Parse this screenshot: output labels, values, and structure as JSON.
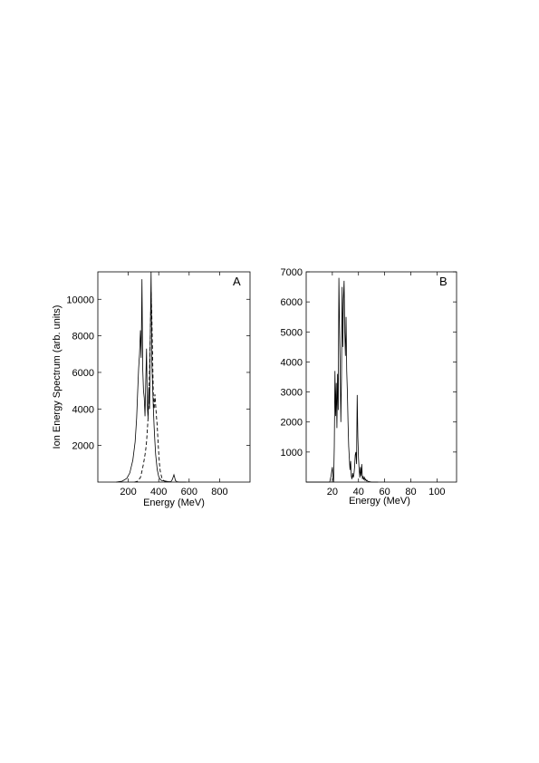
{
  "chart_data": [
    {
      "type": "line",
      "panel_label": "A",
      "xlabel": "Energy (MeV)",
      "ylabel": "Ion Energy Spectrum (arb. units)",
      "xlim": [
        0,
        1000
      ],
      "ylim": [
        0,
        11500
      ],
      "xticks": [
        200,
        400,
        600,
        800
      ],
      "yticks": [
        2000,
        4000,
        6000,
        8000,
        10000
      ],
      "grid": false,
      "series": [
        {
          "style": "solid",
          "x": [
            120,
            160,
            190,
            210,
            230,
            245,
            255,
            262,
            268,
            274,
            280,
            285,
            290,
            295,
            300,
            305,
            310,
            315,
            320,
            325,
            330,
            335,
            340,
            345,
            350,
            355,
            360,
            365,
            370,
            375,
            380,
            390,
            400,
            410,
            420,
            440,
            460,
            480,
            490,
            500,
            505,
            510,
            520,
            540,
            580
          ],
          "y": [
            0,
            50,
            200,
            500,
            1200,
            2200,
            3500,
            5000,
            6200,
            7000,
            8300,
            6800,
            11100,
            6200,
            5000,
            4600,
            3600,
            5500,
            7300,
            4200,
            3500,
            5200,
            4000,
            8300,
            11500,
            6500,
            5200,
            4000,
            3000,
            2200,
            1500,
            700,
            300,
            150,
            80,
            60,
            30,
            20,
            150,
            400,
            250,
            80,
            20,
            0,
            0
          ]
        },
        {
          "style": "dashed",
          "x": [
            240,
            260,
            280,
            290,
            300,
            310,
            315,
            320,
            325,
            330,
            335,
            340,
            345,
            350,
            355,
            360,
            365,
            370,
            375,
            380,
            385,
            390,
            395,
            400,
            405,
            410,
            420,
            430,
            440,
            460
          ],
          "y": [
            0,
            40,
            250,
            600,
            1000,
            1500,
            1800,
            2200,
            2800,
            3500,
            4600,
            6200,
            8200,
            10400,
            9000,
            6800,
            4600,
            4000,
            4800,
            4200,
            3600,
            3100,
            2300,
            1600,
            1000,
            600,
            250,
            100,
            40,
            0
          ]
        }
      ]
    },
    {
      "type": "line",
      "panel_label": "B",
      "xlabel": "Energy (MeV)",
      "xlim": [
        0,
        115
      ],
      "ylim": [
        0,
        7000
      ],
      "xticks": [
        20,
        40,
        60,
        80,
        100
      ],
      "yticks": [
        1000,
        2000,
        3000,
        4000,
        5000,
        6000,
        7000
      ],
      "grid": false,
      "series": [
        {
          "style": "solid",
          "x": [
            0,
            18,
            19,
            20,
            20.5,
            21,
            21.5,
            22,
            22.5,
            23,
            23.5,
            24,
            24.5,
            25,
            25.5,
            26,
            26.5,
            27,
            27.5,
            28,
            28.5,
            29,
            29.5,
            30,
            30.5,
            31,
            31.5,
            32,
            32.5,
            33,
            33.5,
            34,
            34.5,
            35,
            35.5,
            36,
            36.5,
            37,
            37.5,
            38,
            38.5,
            39,
            39.5,
            40,
            40.5,
            41,
            41.5,
            42,
            42.5,
            43,
            43.5,
            44,
            44.5,
            45,
            45.5,
            46,
            46.5,
            47,
            48,
            50,
            55
          ],
          "y": [
            0,
            0,
            200,
            500,
            150,
            0,
            1200,
            3700,
            2200,
            3300,
            1800,
            3600,
            2400,
            6800,
            5200,
            3800,
            2000,
            3500,
            6500,
            4500,
            6100,
            6700,
            5000,
            4200,
            5500,
            3700,
            3000,
            2000,
            1200,
            800,
            400,
            700,
            200,
            100,
            300,
            150,
            250,
            500,
            900,
            1000,
            600,
            2900,
            1500,
            800,
            400,
            150,
            500,
            200,
            600,
            100,
            200,
            80,
            150,
            60,
            100,
            40,
            60,
            30,
            20,
            0,
            0
          ]
        }
      ]
    }
  ]
}
